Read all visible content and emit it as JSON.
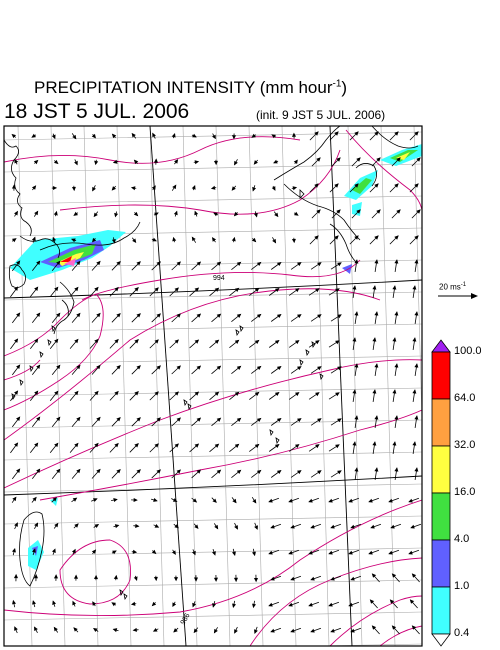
{
  "header": {
    "title_main": "PRECIPITATION INTENSITY (mm hour",
    "title_exp": "-1",
    "title_close": ")",
    "valid_time": "18 JST 5 JUL. 2006",
    "init_time": "(init. 9 JST 5 JUL. 2006)"
  },
  "map": {
    "contour_label_1": "994",
    "contour_label_2": "986",
    "coast_color": "#000000",
    "isobar_color": "#cc0077",
    "grid_color": "#aaaaaa"
  },
  "wind_scale": {
    "label": "20 ms",
    "exp": "-1"
  },
  "legend": {
    "levels": [
      "100.0",
      "64.0",
      "32.0",
      "16.0",
      "4.0",
      "1.0",
      "0.4"
    ],
    "colors": [
      "#a020f0",
      "#ff0000",
      "#ffa040",
      "#ffff40",
      "#40e040",
      "#6060ff",
      "#40ffff",
      "#ffffff"
    ]
  }
}
